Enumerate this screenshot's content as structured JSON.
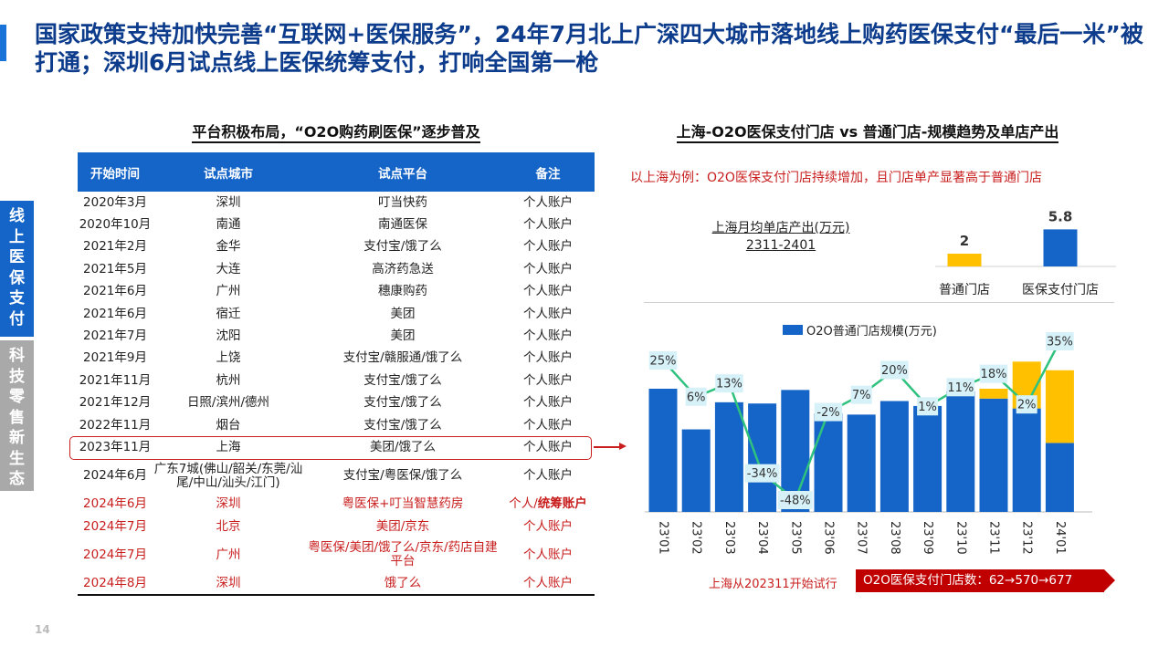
{
  "title": "国家政策支持加快完善“互联网+医保服务”，24年7月北上广深四大城市落地线上购药医保支付“最后一米”被打通；深圳6月试点线上医保统筹支付，打响全国第一枪",
  "side_tabs": {
    "active": [
      "线",
      "上",
      "医",
      "保",
      "支",
      "付"
    ],
    "inactive": [
      "科",
      "技",
      "零",
      "售",
      "新",
      "生",
      "态"
    ]
  },
  "left_panel": {
    "title": "平台积极布局，“O2O购药刷医保”逐步普及",
    "columns": [
      "开始时间",
      "试点城市",
      "试点平台",
      "备注"
    ],
    "rows": [
      {
        "date": "2020年3月",
        "city": "深圳",
        "platform": "叮当快药",
        "note": "个人账户"
      },
      {
        "date": "2020年10月",
        "city": "南通",
        "platform": "南通医保",
        "note": "个人账户"
      },
      {
        "date": "2021年2月",
        "city": "金华",
        "platform": "支付宝/饿了么",
        "note": "个人账户"
      },
      {
        "date": "2021年5月",
        "city": "大连",
        "platform": "高济药急送",
        "note": "个人账户"
      },
      {
        "date": "2021年6月",
        "city": "广州",
        "platform": "穗康购药",
        "note": "个人账户"
      },
      {
        "date": "2021年6月",
        "city": "宿迁",
        "platform": "美团",
        "note": "个人账户"
      },
      {
        "date": "2021年7月",
        "city": "沈阳",
        "platform": "美团",
        "note": "个人账户"
      },
      {
        "date": "2021年9月",
        "city": "上饶",
        "platform": "支付宝/赣服通/饿了么",
        "note": "个人账户"
      },
      {
        "date": "2021年11月",
        "city": "杭州",
        "platform": "支付宝/饿了么",
        "note": "个人账户"
      },
      {
        "date": "2021年12月",
        "city": "日照/滨州/德州",
        "platform": "支付宝/饿了么",
        "note": "个人账户"
      },
      {
        "date": "2022年11月",
        "city": "烟台",
        "platform": "支付宝/饿了么",
        "note": "个人账户"
      },
      {
        "date": "2023年11月",
        "city": "上海",
        "platform": "美团/饿了么",
        "note": "个人账户"
      },
      {
        "date": "2024年6月",
        "city": "广东7城(佛山/韶关/东莞/汕尾/中山/汕头/江门)",
        "platform": "支付宝/粤医保/饿了么",
        "note": "个人账户"
      },
      {
        "date": "2024年6月",
        "city": "深圳",
        "platform": "粤医保+叮当智慧药房",
        "note": "个人/",
        "note_bold": "统筹账户"
      },
      {
        "date": "2024年7月",
        "city": "北京",
        "platform": "美团/京东",
        "note": "个人账户"
      },
      {
        "date": "2024年7月",
        "city": "广州",
        "platform": "粤医保/美团/饿了么/京东/药店自建平台",
        "note": "个人账户"
      },
      {
        "date": "2024年8月",
        "city": "深圳",
        "platform": "饿了么",
        "note": "个人账户"
      }
    ]
  },
  "right_panel": {
    "title": "上海-O2O医保支付门店 vs 普通门店-规模趋势及单店产出",
    "subtitle": "以上海为例：O2O医保支付门店持续增加，且门店单产显著高于普通门店",
    "mini_label_1": "上海月均单店产出(万元)",
    "mini_label_2": "2311-2401",
    "legend": "O2O普通门店规模(万元)",
    "footnote": "上海从202311开始试行",
    "count_tag": "O2O医保支付门店数：62→570→677"
  },
  "page_number": "14",
  "colors": {
    "blue": "#1565c8",
    "gold": "#ffc000",
    "green": "#2ec27e",
    "red": "#c81e1e",
    "label_bg": "#d6f1f8"
  },
  "chart_data": [
    {
      "type": "bar",
      "categories": [
        "普通门店",
        "医保支付门店"
      ],
      "values": [
        2.0,
        5.8
      ],
      "colors": [
        "#ffc000",
        "#1565c8"
      ],
      "ylim": [
        0,
        6
      ]
    },
    {
      "type": "bar",
      "categories": [
        "23'01",
        "23'02",
        "23'03",
        "23'04",
        "23'05",
        "23'06",
        "23'07",
        "23'08",
        "23'09",
        "23'10",
        "23'11",
        "23'12",
        "24'01"
      ],
      "series": [
        {
          "name": "O2O普通门店规模(万元)",
          "values": [
            100,
            67,
            89,
            88,
            99,
            80,
            79,
            90,
            86,
            98,
            92,
            84,
            56
          ]
        },
        {
          "values": [
            0,
            0,
            0,
            0,
            0,
            0,
            0,
            0,
            0,
            0,
            8,
            38,
            59
          ]
        }
      ],
      "growth_labels": [
        "25%",
        "6%",
        "13%",
        "-34%",
        "-48%",
        "-2%",
        "7%",
        "20%",
        "1%",
        "11%",
        "18%",
        "2%",
        "35%"
      ],
      "growth_values": [
        25,
        6,
        13,
        -34,
        -48,
        -2,
        7,
        20,
        1,
        11,
        18,
        2,
        35
      ],
      "ylim": [
        0,
        120
      ]
    }
  ]
}
